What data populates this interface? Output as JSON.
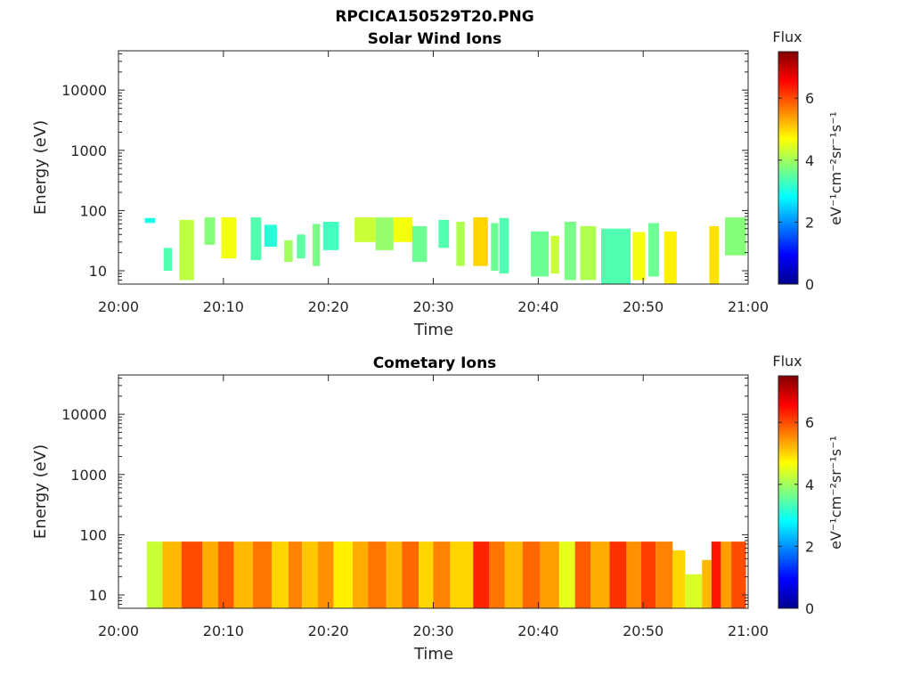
{
  "figure": {
    "title": "RPCICA150529T20.PNG"
  },
  "colorbar": {
    "colormap": "jet",
    "title": "Flux",
    "ylabel": "eV⁻¹cm⁻²sr⁻¹s⁻¹",
    "range": [
      0,
      7.5
    ],
    "ticks": [
      "0",
      "2",
      "4",
      "6"
    ]
  },
  "chart_data": [
    {
      "type": "heatmap",
      "title": "Solar Wind Ions",
      "xlabel": "Time",
      "ylabel": "Energy (eV)",
      "x_ticks": [
        "20:00",
        "20:10",
        "20:20",
        "20:30",
        "20:40",
        "20:50",
        "21:00"
      ],
      "x_range_minutes": [
        0,
        60
      ],
      "y_scale": "log",
      "y_ticks": [
        "10",
        "100",
        "1000",
        "10000"
      ],
      "y_range": [
        6,
        45000
      ],
      "flux_range": [
        0,
        7.5
      ],
      "cells": [
        {
          "t": [
            2.5,
            3.5
          ],
          "e": [
            62,
            75
          ],
          "flux": 3.0
        },
        {
          "t": [
            4.3,
            5.1
          ],
          "e": [
            10,
            24
          ],
          "flux": 3.4
        },
        {
          "t": [
            5.8,
            7.2
          ],
          "e": [
            7,
            70
          ],
          "flux": 4.2
        },
        {
          "t": [
            8.2,
            9.2
          ],
          "e": [
            27,
            77
          ],
          "flux": 3.8
        },
        {
          "t": [
            9.8,
            11.2
          ],
          "e": [
            16,
            77
          ],
          "flux": 4.6
        },
        {
          "t": [
            12.6,
            13.6
          ],
          "e": [
            15,
            77
          ],
          "flux": 3.4
        },
        {
          "t": [
            13.9,
            15.1
          ],
          "e": [
            25,
            58
          ],
          "flux": 3.1
        },
        {
          "t": [
            15.8,
            16.6
          ],
          "e": [
            14,
            32
          ],
          "flux": 4.0
        },
        {
          "t": [
            17.0,
            17.8
          ],
          "e": [
            16,
            40
          ],
          "flux": 3.5
        },
        {
          "t": [
            18.5,
            19.2
          ],
          "e": [
            12,
            60
          ],
          "flux": 3.7
        },
        {
          "t": [
            19.5,
            21.0
          ],
          "e": [
            22,
            65
          ],
          "flux": 3.3
        },
        {
          "t": [
            22.5,
            24.5
          ],
          "e": [
            30,
            77
          ],
          "flux": 4.3
        },
        {
          "t": [
            24.5,
            26.2
          ],
          "e": [
            22,
            77
          ],
          "flux": 3.9
        },
        {
          "t": [
            26.2,
            28.0
          ],
          "e": [
            30,
            77
          ],
          "flux": 4.6
        },
        {
          "t": [
            28.0,
            29.4
          ],
          "e": [
            14,
            55
          ],
          "flux": 3.6
        },
        {
          "t": [
            30.5,
            31.5
          ],
          "e": [
            24,
            70
          ],
          "flux": 3.4
        },
        {
          "t": [
            32.2,
            33.0
          ],
          "e": [
            12,
            65
          ],
          "flux": 4.1
        },
        {
          "t": [
            33.8,
            35.2
          ],
          "e": [
            12,
            77
          ],
          "flux": 5.0
        },
        {
          "t": [
            35.5,
            36.2
          ],
          "e": [
            10,
            62
          ],
          "flux": 3.6
        },
        {
          "t": [
            36.3,
            37.2
          ],
          "e": [
            9,
            75
          ],
          "flux": 3.4
        },
        {
          "t": [
            39.3,
            41.0
          ],
          "e": [
            8,
            45
          ],
          "flux": 3.6
        },
        {
          "t": [
            41.2,
            42.0
          ],
          "e": [
            9,
            38
          ],
          "flux": 4.3
        },
        {
          "t": [
            42.5,
            43.6
          ],
          "e": [
            7,
            65
          ],
          "flux": 3.7
        },
        {
          "t": [
            44.0,
            45.5
          ],
          "e": [
            7,
            55
          ],
          "flux": 4.1
        },
        {
          "t": [
            46.0,
            48.8
          ],
          "e": [
            6,
            50
          ],
          "flux": 3.4
        },
        {
          "t": [
            49.0,
            50.2
          ],
          "e": [
            7,
            44
          ],
          "flux": 4.6
        },
        {
          "t": [
            50.5,
            51.5
          ],
          "e": [
            8,
            62
          ],
          "flux": 3.6
        },
        {
          "t": [
            52.0,
            53.2
          ],
          "e": [
            6,
            45
          ],
          "flux": 4.8
        },
        {
          "t": [
            56.3,
            57.2
          ],
          "e": [
            6,
            55
          ],
          "flux": 4.9
        },
        {
          "t": [
            57.8,
            59.8
          ],
          "e": [
            18,
            77
          ],
          "flux": 3.8
        }
      ]
    },
    {
      "type": "heatmap",
      "title": "Cometary Ions",
      "xlabel": "Time",
      "ylabel": "Energy (eV)",
      "x_ticks": [
        "20:00",
        "20:10",
        "20:20",
        "20:30",
        "20:40",
        "20:50",
        "21:00"
      ],
      "x_range_minutes": [
        0,
        60
      ],
      "y_scale": "log",
      "y_ticks": [
        "10",
        "100",
        "1000",
        "10000"
      ],
      "y_range": [
        6,
        45000
      ],
      "flux_range": [
        0,
        7.5
      ],
      "cells": [
        {
          "t": [
            2.7,
            4.2
          ],
          "e": [
            6,
            77
          ],
          "flux": 4.3
        },
        {
          "t": [
            4.2,
            6.0
          ],
          "e": [
            6,
            77
          ],
          "flux": 5.2
        },
        {
          "t": [
            6.0,
            8.0
          ],
          "e": [
            6,
            77
          ],
          "flux": 6.0
        },
        {
          "t": [
            8.0,
            9.5
          ],
          "e": [
            6,
            77
          ],
          "flux": 5.3
        },
        {
          "t": [
            9.5,
            11.0
          ],
          "e": [
            6,
            77
          ],
          "flux": 5.9
        },
        {
          "t": [
            11.0,
            12.8
          ],
          "e": [
            6,
            77
          ],
          "flux": 5.2
        },
        {
          "t": [
            12.8,
            14.6
          ],
          "e": [
            6,
            77
          ],
          "flux": 5.7
        },
        {
          "t": [
            14.6,
            16.2
          ],
          "e": [
            6,
            77
          ],
          "flux": 5.0
        },
        {
          "t": [
            16.2,
            17.5
          ],
          "e": [
            6,
            77
          ],
          "flux": 5.6
        },
        {
          "t": [
            17.5,
            19.0
          ],
          "e": [
            6,
            77
          ],
          "flux": 5.1
        },
        {
          "t": [
            19.0,
            20.5
          ],
          "e": [
            6,
            77
          ],
          "flux": 5.5
        },
        {
          "t": [
            20.5,
            22.3
          ],
          "e": [
            6,
            77
          ],
          "flux": 4.8
        },
        {
          "t": [
            22.3,
            23.8
          ],
          "e": [
            6,
            77
          ],
          "flux": 5.3
        },
        {
          "t": [
            23.8,
            25.5
          ],
          "e": [
            6,
            77
          ],
          "flux": 5.7
        },
        {
          "t": [
            25.5,
            27.0
          ],
          "e": [
            6,
            77
          ],
          "flux": 5.2
        },
        {
          "t": [
            27.0,
            28.6
          ],
          "e": [
            6,
            77
          ],
          "flux": 5.8
        },
        {
          "t": [
            28.6,
            30.0
          ],
          "e": [
            6,
            77
          ],
          "flux": 5.0
        },
        {
          "t": [
            30.0,
            31.6
          ],
          "e": [
            6,
            77
          ],
          "flux": 5.6
        },
        {
          "t": [
            31.6,
            33.8
          ],
          "e": [
            6,
            77
          ],
          "flux": 5.0
        },
        {
          "t": [
            33.8,
            35.3
          ],
          "e": [
            6,
            77
          ],
          "flux": 6.3
        },
        {
          "t": [
            35.3,
            36.8
          ],
          "e": [
            6,
            77
          ],
          "flux": 5.7
        },
        {
          "t": [
            36.8,
            38.5
          ],
          "e": [
            6,
            77
          ],
          "flux": 5.2
        },
        {
          "t": [
            38.5,
            40.2
          ],
          "e": [
            6,
            77
          ],
          "flux": 5.8
        },
        {
          "t": [
            40.2,
            42.0
          ],
          "e": [
            6,
            77
          ],
          "flux": 5.4
        },
        {
          "t": [
            42.0,
            43.5
          ],
          "e": [
            6,
            77
          ],
          "flux": 4.5
        },
        {
          "t": [
            43.5,
            45.0
          ],
          "e": [
            6,
            77
          ],
          "flux": 5.9
        },
        {
          "t": [
            45.0,
            46.8
          ],
          "e": [
            6,
            77
          ],
          "flux": 5.3
        },
        {
          "t": [
            46.8,
            48.4
          ],
          "e": [
            6,
            77
          ],
          "flux": 6.2
        },
        {
          "t": [
            48.4,
            49.8
          ],
          "e": [
            6,
            77
          ],
          "flux": 5.5
        },
        {
          "t": [
            49.8,
            51.2
          ],
          "e": [
            6,
            77
          ],
          "flux": 6.1
        },
        {
          "t": [
            51.2,
            52.8
          ],
          "e": [
            6,
            77
          ],
          "flux": 5.6
        },
        {
          "t": [
            52.8,
            54.0
          ],
          "e": [
            6,
            55
          ],
          "flux": 5.0
        },
        {
          "t": [
            54.0,
            55.6
          ],
          "e": [
            6,
            22
          ],
          "flux": 4.4
        },
        {
          "t": [
            55.6,
            56.5
          ],
          "e": [
            6,
            38
          ],
          "flux": 5.2
        },
        {
          "t": [
            56.5,
            57.4
          ],
          "e": [
            6,
            77
          ],
          "flux": 6.4
        },
        {
          "t": [
            57.4,
            58.4
          ],
          "e": [
            6,
            77
          ],
          "flux": 5.4
        },
        {
          "t": [
            58.4,
            59.8
          ],
          "e": [
            6,
            77
          ],
          "flux": 6.0
        }
      ]
    }
  ]
}
